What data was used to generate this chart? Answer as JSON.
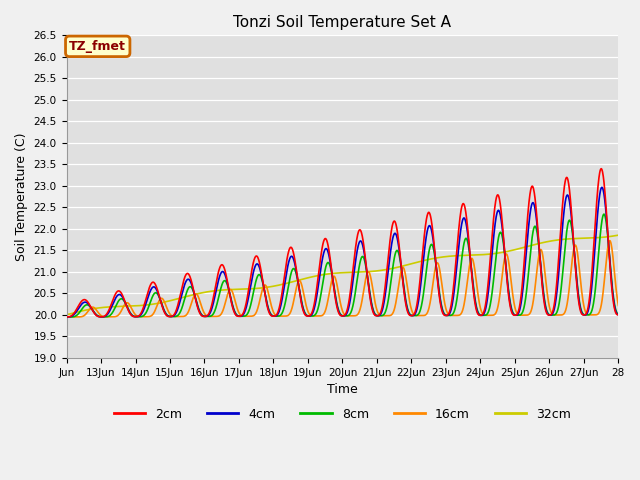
{
  "title": "Tonzi Soil Temperature Set A",
  "xlabel": "Time",
  "ylabel": "Soil Temperature (C)",
  "ylim": [
    19.0,
    26.5
  ],
  "yticks": [
    19.0,
    19.5,
    20.0,
    20.5,
    21.0,
    21.5,
    22.0,
    22.5,
    23.0,
    23.5,
    24.0,
    24.5,
    25.0,
    25.5,
    26.0,
    26.5
  ],
  "xtick_labels": [
    "Jun",
    "13Jun",
    "14Jun",
    "15Jun",
    "16Jun",
    "17Jun",
    "18Jun",
    "19Jun",
    "20Jun",
    "21Jun",
    "22Jun",
    "23Jun",
    "24Jun",
    "25Jun",
    "26Jun",
    "27Jun",
    "28"
  ],
  "background_color": "#f0f0f0",
  "plot_bg_color": "#e0e0e0",
  "grid_color": "#ffffff",
  "annotation_text": "TZ_fmet",
  "annotation_bg": "#ffffcc",
  "annotation_border": "#cc6600",
  "annotation_text_color": "#8b0000",
  "series": {
    "2cm": {
      "color": "#ff0000",
      "linewidth": 1.2
    },
    "4cm": {
      "color": "#0000cc",
      "linewidth": 1.2
    },
    "8cm": {
      "color": "#00bb00",
      "linewidth": 1.2
    },
    "16cm": {
      "color": "#ff8800",
      "linewidth": 1.2
    },
    "32cm": {
      "color": "#cccc00",
      "linewidth": 1.2
    }
  }
}
